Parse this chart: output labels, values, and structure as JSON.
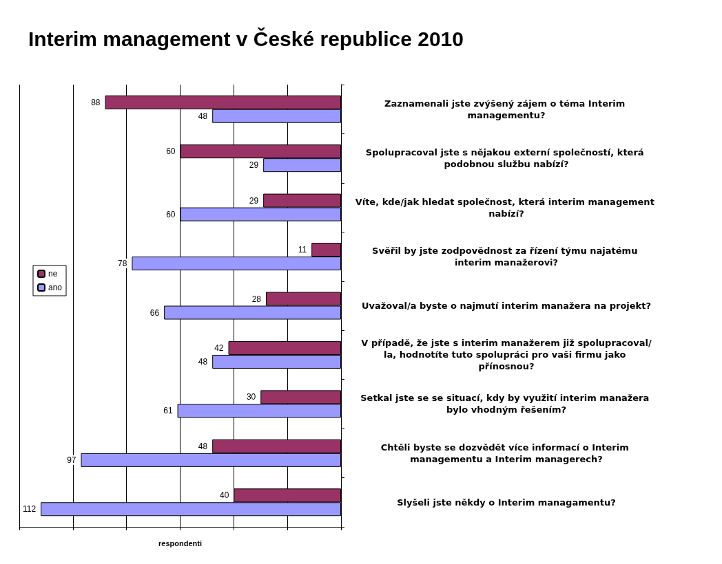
{
  "chart_data": {
    "type": "bar",
    "orientation": "horizontal",
    "title": "Interim management v České republice 2010",
    "xlabel": "respondenti",
    "categories": [
      "Zaznamenali jste zvýšený zájem o téma Interim managementu?",
      "Spolupracoval jste s nějakou externí společností, která podobnou službu nabízí?",
      "Víte, kde/jak hledat společnost, která interim management nabízí?",
      "Svěřil by jste zodpovědnost za řízení týmu najatému interim manažerovi?",
      "Uvažoval/a byste o najmutí interim manažera na projekt?",
      "V případě, že jste s interim manažerem již spolupracoval/la, hodnotíte tuto spolupráci pro vaši firmu jako přínosnou?",
      "Setkal jste se se situací, kdy by využití interim manažera bylo vhodným řešením?",
      "Chtěli byste se dozvědět více informací o Interim managementu a Interim managerech?",
      "Slyšeli jste někdy o Interim managamentu?"
    ],
    "series": [
      {
        "name": "ne",
        "color": "#993366",
        "values": [
          88,
          60,
          29,
          11,
          28,
          42,
          30,
          48,
          40
        ]
      },
      {
        "name": "ano",
        "color": "#9999ff",
        "values": [
          48,
          29,
          60,
          78,
          66,
          48,
          61,
          97,
          112
        ]
      }
    ],
    "xlim": [
      120,
      0
    ],
    "xticks": [
      {
        "value": 0,
        "label": null
      },
      {
        "value": 20,
        "label": null
      },
      {
        "value": 40,
        "label": null
      },
      {
        "value": 60,
        "label": null
      },
      {
        "value": 80,
        "label": null
      },
      {
        "value": 100,
        "label": null
      },
      {
        "value": 120,
        "label": null
      }
    ],
    "grid": "x",
    "legend": "left",
    "tick_labels": "y",
    "data_labels": true
  }
}
